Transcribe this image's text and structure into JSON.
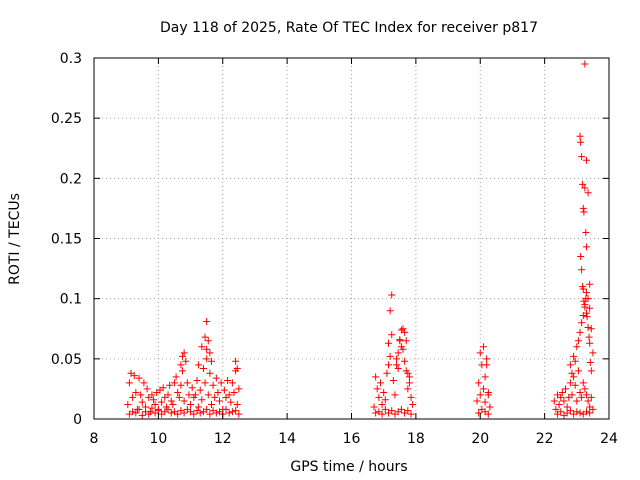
{
  "chart_data": {
    "type": "scatter",
    "title": "Day 118 of 2025, Rate Of TEC Index for receiver p817",
    "xlabel": "GPS time / hours",
    "ylabel": "ROTI / TECUs",
    "xlim": [
      8,
      24
    ],
    "ylim": [
      0,
      0.3
    ],
    "xticks": [
      "8",
      "10",
      "12",
      "14",
      "16",
      "18",
      "20",
      "22",
      "24"
    ],
    "yticks": [
      "0",
      "0.05",
      "0.1",
      "0.15",
      "0.2",
      "0.25",
      "0.3"
    ],
    "grid": true,
    "marker": "plus",
    "series_color": "#ff0000",
    "series": [
      {
        "name": "ROTI",
        "x": [
          9.05,
          9.1,
          9.15,
          9.2,
          9.25,
          9.3,
          9.35,
          9.4,
          9.45,
          9.5,
          9.55,
          9.6,
          9.65,
          9.7,
          9.75,
          9.8,
          9.85,
          9.9,
          9.95,
          10.0,
          10.05,
          10.1,
          10.15,
          10.2,
          10.25,
          10.3,
          10.35,
          10.4,
          10.45,
          10.5,
          10.55,
          10.6,
          10.65,
          10.7,
          10.75,
          10.8,
          10.85,
          10.9,
          10.95,
          11.0,
          11.05,
          11.1,
          11.15,
          11.2,
          11.25,
          11.3,
          11.35,
          11.4,
          11.45,
          11.5,
          11.55,
          11.6,
          11.65,
          11.7,
          11.75,
          11.8,
          11.85,
          11.9,
          11.95,
          12.0,
          12.05,
          12.1,
          12.15,
          12.2,
          12.25,
          12.3,
          12.35,
          12.4,
          12.45,
          12.5,
          9.1,
          9.2,
          9.3,
          9.4,
          9.5,
          9.6,
          9.7,
          9.8,
          9.9,
          10.0,
          10.1,
          10.2,
          10.3,
          10.4,
          10.5,
          10.6,
          10.7,
          10.8,
          10.9,
          11.0,
          11.1,
          11.2,
          11.3,
          11.4,
          11.5,
          11.6,
          11.7,
          11.8,
          11.9,
          12.0,
          12.1,
          12.2,
          12.3,
          12.4,
          12.5,
          10.7,
          10.75,
          10.8,
          11.35,
          11.45,
          11.5,
          11.55,
          11.6,
          11.65,
          11.25,
          11.5,
          12.4,
          12.45,
          16.7,
          16.75,
          16.8,
          16.85,
          16.9,
          16.95,
          17.0,
          17.05,
          17.1,
          17.15,
          17.2,
          17.25,
          17.3,
          17.35,
          17.4,
          17.45,
          17.5,
          17.55,
          17.6,
          17.65,
          17.7,
          17.75,
          17.8,
          17.85,
          17.9,
          16.75,
          16.85,
          16.95,
          17.05,
          17.15,
          17.25,
          17.35,
          17.45,
          17.55,
          17.65,
          17.75,
          17.85,
          17.15,
          17.2,
          17.25,
          17.5,
          17.55,
          17.6,
          17.65,
          17.7,
          17.4,
          17.45,
          17.75,
          17.8,
          19.9,
          19.95,
          20.0,
          20.05,
          20.1,
          20.15,
          20.2,
          20.25,
          20.3,
          19.95,
          20.05,
          20.15,
          20.25,
          20.0,
          20.1,
          20.2,
          20.15,
          20.25,
          22.3,
          22.35,
          22.4,
          22.45,
          22.5,
          22.55,
          22.6,
          22.65,
          22.7,
          22.75,
          22.8,
          22.85,
          22.9,
          22.95,
          23.0,
          23.05,
          23.1,
          23.15,
          23.2,
          23.25,
          23.3,
          23.35,
          23.4,
          23.45,
          23.5,
          22.4,
          22.5,
          22.6,
          22.7,
          22.8,
          22.9,
          23.0,
          23.1,
          23.2,
          23.3,
          23.4,
          22.8,
          22.85,
          22.9,
          22.95,
          23.0,
          23.05,
          23.1,
          23.15,
          23.2,
          23.25,
          23.3,
          23.35,
          23.4,
          23.45,
          23.5,
          23.1,
          23.12,
          23.15,
          23.18,
          23.2,
          23.22,
          23.25,
          23.28,
          23.3,
          23.12,
          23.15,
          23.18,
          23.2,
          23.22,
          23.25,
          23.28,
          23.3,
          23.32,
          23.35,
          23.38,
          23.4,
          23.42,
          23.45,
          23.25,
          23.3,
          23.35,
          23.4
        ],
        "y": [
          0.012,
          0.03,
          0.038,
          0.018,
          0.036,
          0.022,
          0.008,
          0.034,
          0.02,
          0.014,
          0.03,
          0.01,
          0.025,
          0.018,
          0.006,
          0.02,
          0.016,
          0.012,
          0.022,
          0.008,
          0.024,
          0.014,
          0.026,
          0.018,
          0.01,
          0.02,
          0.028,
          0.015,
          0.012,
          0.03,
          0.035,
          0.022,
          0.018,
          0.028,
          0.04,
          0.015,
          0.048,
          0.03,
          0.02,
          0.012,
          0.026,
          0.018,
          0.02,
          0.032,
          0.01,
          0.024,
          0.016,
          0.042,
          0.03,
          0.05,
          0.02,
          0.038,
          0.012,
          0.028,
          0.018,
          0.034,
          0.022,
          0.015,
          0.03,
          0.008,
          0.024,
          0.018,
          0.032,
          0.02,
          0.014,
          0.03,
          0.022,
          0.04,
          0.012,
          0.025,
          0.004,
          0.006,
          0.005,
          0.008,
          0.003,
          0.006,
          0.004,
          0.009,
          0.005,
          0.007,
          0.004,
          0.006,
          0.008,
          0.005,
          0.006,
          0.004,
          0.007,
          0.005,
          0.008,
          0.006,
          0.004,
          0.007,
          0.005,
          0.006,
          0.008,
          0.004,
          0.007,
          0.005,
          0.006,
          0.004,
          0.008,
          0.005,
          0.006,
          0.007,
          0.004,
          0.045,
          0.052,
          0.055,
          0.06,
          0.068,
          0.081,
          0.065,
          0.055,
          0.048,
          0.045,
          0.058,
          0.048,
          0.042,
          0.01,
          0.035,
          0.025,
          0.018,
          0.03,
          0.012,
          0.022,
          0.016,
          0.038,
          0.045,
          0.052,
          0.07,
          0.032,
          0.02,
          0.045,
          0.055,
          0.065,
          0.06,
          0.075,
          0.072,
          0.04,
          0.025,
          0.03,
          0.018,
          0.012,
          0.005,
          0.006,
          0.004,
          0.008,
          0.005,
          0.007,
          0.004,
          0.006,
          0.008,
          0.005,
          0.007,
          0.004,
          0.063,
          0.09,
          0.103,
          0.066,
          0.074,
          0.058,
          0.048,
          0.065,
          0.05,
          0.042,
          0.038,
          0.035,
          0.015,
          0.03,
          0.02,
          0.045,
          0.025,
          0.035,
          0.045,
          0.02,
          0.01,
          0.005,
          0.008,
          0.006,
          0.004,
          0.055,
          0.06,
          0.05,
          0.014,
          0.022,
          0.015,
          0.008,
          0.02,
          0.012,
          0.018,
          0.022,
          0.015,
          0.025,
          0.01,
          0.018,
          0.03,
          0.02,
          0.035,
          0.028,
          0.015,
          0.04,
          0.022,
          0.018,
          0.03,
          0.025,
          0.02,
          0.015,
          0.01,
          0.018,
          0.008,
          0.004,
          0.006,
          0.003,
          0.005,
          0.007,
          0.004,
          0.006,
          0.005,
          0.004,
          0.006,
          0.005,
          0.045,
          0.038,
          0.052,
          0.048,
          0.06,
          0.065,
          0.072,
          0.08,
          0.086,
          0.095,
          0.088,
          0.1,
          0.092,
          0.075,
          0.055,
          0.235,
          0.23,
          0.218,
          0.195,
          0.175,
          0.172,
          0.192,
          0.155,
          0.143,
          0.135,
          0.124,
          0.11,
          0.108,
          0.098,
          0.093,
          0.1,
          0.105,
          0.085,
          0.076,
          0.068,
          0.063,
          0.047,
          0.04,
          0.295,
          0.215,
          0.188,
          0.112
        ]
      }
    ]
  }
}
